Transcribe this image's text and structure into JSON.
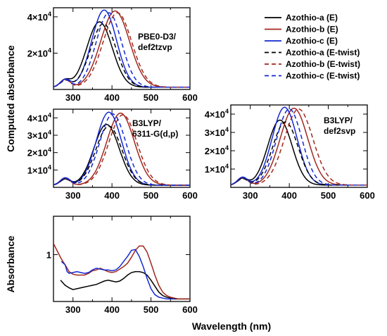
{
  "figure": {
    "ylabel_computed": "Computed absorbance",
    "ylabel_exp": "Absorbance",
    "xlabel": "Wavelength (nm)"
  },
  "legend": [
    {
      "name": "Azothio-a (E)",
      "color": "#000000",
      "dash": false
    },
    {
      "name": "Azothio-b (E)",
      "color": "#a0281e",
      "dash": false
    },
    {
      "name": "Azothio-c (E)",
      "color": "#1428d2",
      "dash": false
    },
    {
      "name": "Azothio-a (E-twist)",
      "color": "#000000",
      "dash": true
    },
    {
      "name": "Azothio-b (E-twist)",
      "color": "#a0281e",
      "dash": true
    },
    {
      "name": "Azothio-c (E-twist)",
      "color": "#1428d2",
      "dash": true
    }
  ],
  "chart_data": [
    {
      "type": "line",
      "id": "pbe0",
      "label": "PBE0-D3/\ndef2tzvp",
      "xlim": [
        250,
        600
      ],
      "xticks": [
        300,
        400,
        500,
        600
      ],
      "ylim": [
        0,
        45000
      ],
      "yticks": [
        {
          "value": 20000,
          "mant": "2"
        },
        {
          "value": 40000,
          "mant": "4"
        }
      ],
      "series": [
        {
          "name": "Azothio-a (E)",
          "color": "#000000",
          "dash": false,
          "peak_x": 368,
          "peak_y": 36000,
          "width": 46
        },
        {
          "name": "Azothio-b (E)",
          "color": "#a0281e",
          "dash": false,
          "peak_x": 408,
          "peak_y": 42000,
          "width": 52
        },
        {
          "name": "Azothio-c (E)",
          "color": "#1428d2",
          "dash": false,
          "peak_x": 380,
          "peak_y": 42500,
          "width": 45
        },
        {
          "name": "Azothio-a (E-twist)",
          "color": "#000000",
          "dash": true,
          "peak_x": 378,
          "peak_y": 35000,
          "width": 46
        },
        {
          "name": "Azothio-b (E-twist)",
          "color": "#a0281e",
          "dash": true,
          "peak_x": 414,
          "peak_y": 41000,
          "width": 52
        },
        {
          "name": "Azothio-c (E-twist)",
          "color": "#1428d2",
          "dash": true,
          "peak_x": 392,
          "peak_y": 41000,
          "width": 46
        }
      ]
    },
    {
      "type": "line",
      "id": "b3lyp6311",
      "label": "B3LYP/\n6311-G(d,p)",
      "xlim": [
        250,
        600
      ],
      "xticks": [
        300,
        400,
        500,
        600
      ],
      "ylim": [
        0,
        45000
      ],
      "yticks": [
        {
          "value": 10000,
          "mant": "1"
        },
        {
          "value": 20000,
          "mant": "2"
        },
        {
          "value": 30000,
          "mant": "3"
        },
        {
          "value": 40000,
          "mant": "4"
        }
      ],
      "series": [
        {
          "name": "Azothio-a (E)",
          "color": "#000000",
          "dash": false,
          "peak_x": 386,
          "peak_y": 35000,
          "width": 46
        },
        {
          "name": "Azothio-b (E)",
          "color": "#a0281e",
          "dash": false,
          "peak_x": 422,
          "peak_y": 41500,
          "width": 50
        },
        {
          "name": "Azothio-c (E)",
          "color": "#1428d2",
          "dash": false,
          "peak_x": 392,
          "peak_y": 42000,
          "width": 46
        },
        {
          "name": "Azothio-a (E-twist)",
          "color": "#000000",
          "dash": true,
          "peak_x": 392,
          "peak_y": 34000,
          "width": 47
        },
        {
          "name": "Azothio-b (E-twist)",
          "color": "#a0281e",
          "dash": true,
          "peak_x": 428,
          "peak_y": 40500,
          "width": 51
        },
        {
          "name": "Azothio-c (E-twist)",
          "color": "#1428d2",
          "dash": true,
          "peak_x": 402,
          "peak_y": 41000,
          "width": 47
        }
      ]
    },
    {
      "type": "line",
      "id": "b3lypsvp",
      "label": "B3LYP/\ndef2svp",
      "xlim": [
        250,
        600
      ],
      "xticks": [
        300,
        400,
        500,
        600
      ],
      "ylim": [
        0,
        45000
      ],
      "yticks": [
        {
          "value": 10000,
          "mant": "1"
        },
        {
          "value": 20000,
          "mant": "2"
        },
        {
          "value": 30000,
          "mant": "3"
        },
        {
          "value": 40000,
          "mant": "4"
        }
      ],
      "series": [
        {
          "name": "Azothio-a (E)",
          "color": "#000000",
          "dash": false,
          "peak_x": 376,
          "peak_y": 35500,
          "width": 44
        },
        {
          "name": "Azothio-b (E)",
          "color": "#a0281e",
          "dash": false,
          "peak_x": 412,
          "peak_y": 42000,
          "width": 50
        },
        {
          "name": "Azothio-c (E)",
          "color": "#1428d2",
          "dash": false,
          "peak_x": 388,
          "peak_y": 42500,
          "width": 45
        },
        {
          "name": "Azothio-a (E-twist)",
          "color": "#000000",
          "dash": true,
          "peak_x": 390,
          "peak_y": 34500,
          "width": 46
        },
        {
          "name": "Azothio-b (E-twist)",
          "color": "#a0281e",
          "dash": true,
          "peak_x": 424,
          "peak_y": 41500,
          "width": 52
        },
        {
          "name": "Azothio-c (E-twist)",
          "color": "#1428d2",
          "dash": true,
          "peak_x": 400,
          "peak_y": 41500,
          "width": 46
        }
      ]
    },
    {
      "type": "line",
      "id": "experimental",
      "label": "",
      "xlim": [
        250,
        600
      ],
      "xticks": [
        300,
        400,
        500,
        600
      ],
      "ylim": [
        0.45,
        1.45
      ],
      "yticks": [
        {
          "value": 1,
          "text": "1"
        }
      ],
      "series": [
        {
          "name": "Azothio-a",
          "color": "#000000",
          "x": [
            268,
            280,
            290,
            300,
            310,
            320,
            330,
            340,
            350,
            360,
            370,
            380,
            390,
            400,
            410,
            420,
            430,
            440,
            450,
            460,
            470,
            480,
            490,
            500,
            510,
            520,
            530,
            540,
            550,
            560,
            570,
            580,
            590,
            600
          ],
          "y": [
            0.7,
            0.64,
            0.61,
            0.59,
            0.6,
            0.61,
            0.62,
            0.63,
            0.64,
            0.65,
            0.67,
            0.69,
            0.7,
            0.69,
            0.68,
            0.69,
            0.72,
            0.76,
            0.79,
            0.8,
            0.8,
            0.79,
            0.76,
            0.7,
            0.63,
            0.56,
            0.52,
            0.5,
            0.49,
            0.48,
            0.48,
            0.48,
            0.48,
            0.48
          ]
        },
        {
          "name": "Azothio-b",
          "color": "#a0281e",
          "x": [
            250,
            260,
            270,
            280,
            290,
            300,
            310,
            320,
            330,
            340,
            350,
            360,
            370,
            380,
            390,
            400,
            410,
            420,
            430,
            440,
            450,
            460,
            470,
            480,
            490,
            500,
            510,
            520,
            530,
            540,
            550,
            560,
            570,
            580,
            590,
            600
          ],
          "y": [
            1.13,
            1.04,
            0.95,
            0.88,
            0.8,
            0.77,
            0.76,
            0.76,
            0.76,
            0.78,
            0.81,
            0.82,
            0.84,
            0.82,
            0.8,
            0.79,
            0.8,
            0.83,
            0.86,
            0.9,
            0.97,
            1.05,
            1.1,
            1.1,
            1.03,
            0.9,
            0.76,
            0.64,
            0.56,
            0.52,
            0.5,
            0.49,
            0.48,
            0.48,
            0.48,
            0.48
          ]
        },
        {
          "name": "Azothio-c",
          "color": "#1428d2",
          "x": [
            270,
            280,
            285,
            290,
            300,
            310,
            320,
            330,
            340,
            350,
            360,
            370,
            380,
            390,
            400,
            410,
            420,
            430,
            440,
            450,
            460,
            470,
            480,
            490,
            500,
            510,
            520,
            530,
            540,
            550,
            560
          ],
          "y": [
            0.92,
            0.88,
            0.8,
            0.78,
            0.79,
            0.8,
            0.79,
            0.78,
            0.79,
            0.82,
            0.84,
            0.83,
            0.82,
            0.82,
            0.81,
            0.82,
            0.86,
            0.92,
            0.98,
            1.05,
            1.06,
            0.98,
            0.86,
            0.72,
            0.6,
            0.53,
            0.5,
            0.49,
            0.48,
            0.48,
            0.48
          ]
        }
      ]
    }
  ]
}
